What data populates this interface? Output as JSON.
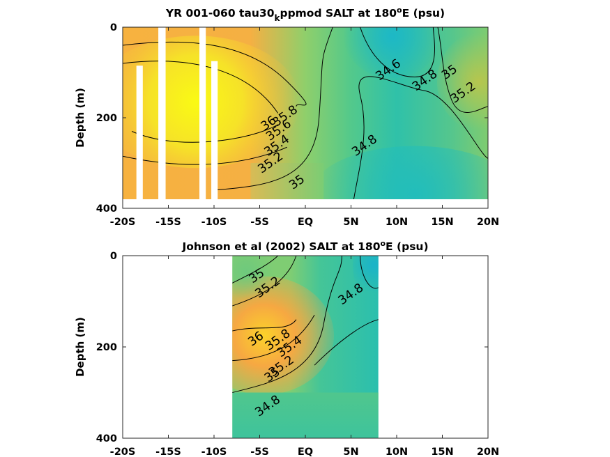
{
  "chart_data": [
    {
      "type": "heatmap",
      "title": "YR 001-060 tau30_kppmod SALT at 180ºE (psu)",
      "title_parts": {
        "pre": "YR 001-060 tau30",
        "sub": "k",
        "mid": "ppmod SALT at 180",
        "sup": "o",
        "post": "E (psu)"
      },
      "ylabel": "Depth (m)",
      "xlabel": "",
      "xlim": [
        -20,
        20
      ],
      "ylim": [
        400,
        0
      ],
      "y_reversed": true,
      "grid": false,
      "x_ticks": [
        -20,
        -15,
        -10,
        -5,
        0,
        5,
        10,
        15,
        20
      ],
      "x_tick_labels": [
        "-20S",
        "-15S",
        "-10S",
        "-5S",
        "EQ",
        "5N",
        "10N",
        "15N",
        "20N"
      ],
      "y_ticks": [
        0,
        200,
        400
      ],
      "y_tick_labels": [
        "0",
        "200",
        "400"
      ],
      "data_extent": {
        "lat": [
          -20,
          20
        ],
        "depth": [
          0,
          380
        ]
      },
      "blank_columns_lat": [
        [
          -18.5,
          -17.8
        ],
        [
          -16.1,
          -15.3
        ],
        [
          -11.6,
          -10.9
        ],
        [
          -10.3,
          -9.6
        ]
      ],
      "contour_labels": [
        {
          "text": "34.6",
          "lat": 9.1,
          "depth": 95
        },
        {
          "text": "34.8",
          "lat": 13.1,
          "depth": 118
        },
        {
          "text": "35",
          "lat": 15.8,
          "depth": 100
        },
        {
          "text": "35.2",
          "lat": 17.3,
          "depth": 145
        },
        {
          "text": "36",
          "lat": -4.0,
          "depth": 213
        },
        {
          "text": "35.8",
          "lat": -2.2,
          "depth": 197
        },
        {
          "text": "35.6",
          "lat": -2.9,
          "depth": 228
        },
        {
          "text": "35.4",
          "lat": -3.1,
          "depth": 262
        },
        {
          "text": "35.2",
          "lat": -3.8,
          "depth": 300
        },
        {
          "text": "35",
          "lat": -0.9,
          "depth": 343
        },
        {
          "text": "34.8",
          "lat": 6.5,
          "depth": 262
        }
      ]
    },
    {
      "type": "heatmap",
      "title": "Johnson et al (2002) SALT at 180ºE (psu)",
      "title_parts": {
        "pre": "Johnson et al (2002) SALT at 180",
        "sup": "o",
        "post": "E (psu)"
      },
      "ylabel": "Depth (m)",
      "xlabel": "",
      "xlim": [
        -20,
        20
      ],
      "ylim": [
        400,
        0
      ],
      "y_reversed": true,
      "grid": false,
      "x_ticks": [
        -20,
        -15,
        -10,
        -5,
        0,
        5,
        10,
        15,
        20
      ],
      "x_tick_labels": [
        "-20S",
        "-15S",
        "-10S",
        "-5S",
        "EQ",
        "5N",
        "10N",
        "15N",
        "20N"
      ],
      "y_ticks": [
        0,
        200,
        400
      ],
      "y_tick_labels": [
        "0",
        "200",
        "400"
      ],
      "data_extent": {
        "lat": [
          -8,
          8
        ],
        "depth": [
          0,
          400
        ]
      },
      "contour_labels": [
        {
          "text": "35",
          "lat": -5.3,
          "depth": 45
        },
        {
          "text": "35.2",
          "lat": -4.1,
          "depth": 70
        },
        {
          "text": "34.8",
          "lat": 5.0,
          "depth": 85
        },
        {
          "text": "36",
          "lat": -5.4,
          "depth": 183
        },
        {
          "text": "35.8",
          "lat": -3.0,
          "depth": 185
        },
        {
          "text": "35.4",
          "lat": -1.7,
          "depth": 200
        },
        {
          "text": "35.2",
          "lat": -2.6,
          "depth": 243
        },
        {
          "text": "35",
          "lat": -3.6,
          "depth": 262
        },
        {
          "text": "34.8",
          "lat": -4.1,
          "depth": 330
        }
      ]
    }
  ]
}
